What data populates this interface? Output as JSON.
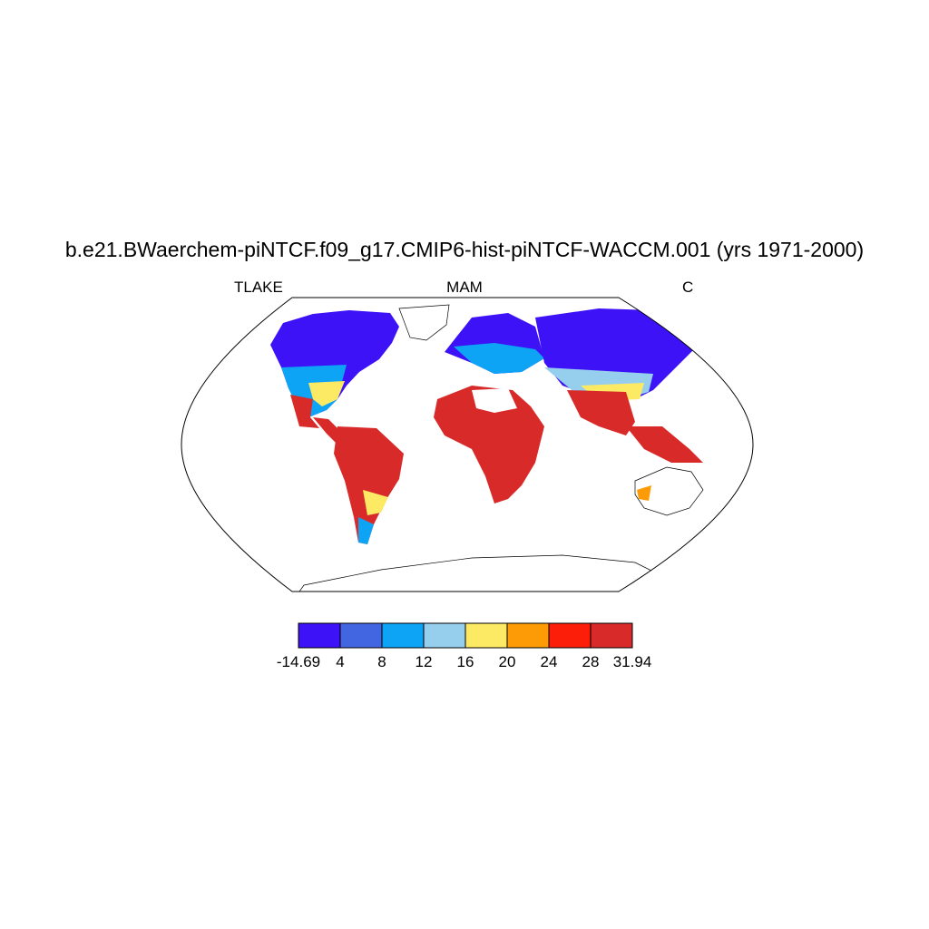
{
  "title": "b.e21.BWaerchem-piNTCF.f09_g17.CMIP6-hist-piNTCF-WACCM.001 (yrs 1971-2000)",
  "left_label": "TLAKE",
  "center_label": "MAM",
  "right_label": "C",
  "colorbar": {
    "colors": [
      "#3d12f7",
      "#4266e2",
      "#0ea4f5",
      "#96ceee",
      "#fdea64",
      "#fd9b06",
      "#fc1e09",
      "#d92a2a"
    ],
    "labels": [
      "-14.69",
      "4",
      "8",
      "12",
      "16",
      "20",
      "24",
      "28",
      "31.94"
    ]
  }
}
